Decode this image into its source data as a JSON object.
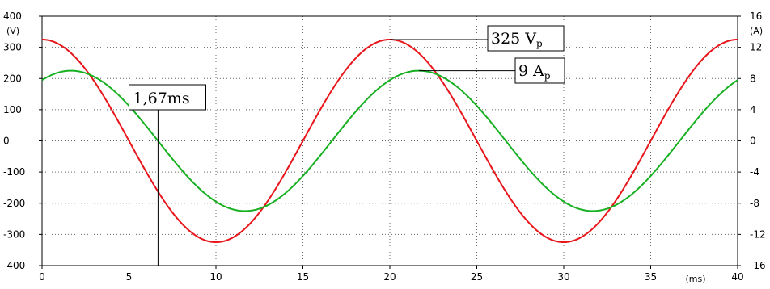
{
  "chart_data": {
    "type": "line",
    "title": "",
    "x_axis": {
      "label": "(ms)",
      "range": [
        0,
        40
      ],
      "ticks": [
        0,
        5,
        10,
        15,
        20,
        25,
        30,
        35,
        40
      ]
    },
    "y_axis_left": {
      "label": "(V)",
      "range": [
        -400,
        400
      ],
      "ticks": [
        400,
        300,
        200,
        100,
        0,
        -100,
        -200,
        -300,
        -400
      ]
    },
    "y_axis_right": {
      "label": "(A)",
      "range": [
        -16,
        16
      ],
      "ticks": [
        16,
        12,
        8,
        4,
        0,
        -4,
        -8,
        -12,
        -16
      ]
    },
    "grid": true,
    "series": [
      {
        "axis": "left",
        "color": "#e8161b",
        "amplitude": 325,
        "period_ms": 20,
        "phase_deg": 90
      },
      {
        "axis": "right",
        "color": "#16b020",
        "amplitude": 9,
        "period_ms": 20,
        "phase_deg": 60
      }
    ],
    "annotations": [
      {
        "text": "1,67ms",
        "from_ms": 5,
        "to_ms": 6.67
      },
      {
        "text": "325 V",
        "sub": "p",
        "points_to": {
          "x": 20,
          "y": 325,
          "axis": "left"
        }
      },
      {
        "text": "9 A",
        "sub": "p",
        "points_to": {
          "x": 21.67,
          "y": 9,
          "axis": "right"
        }
      }
    ]
  }
}
